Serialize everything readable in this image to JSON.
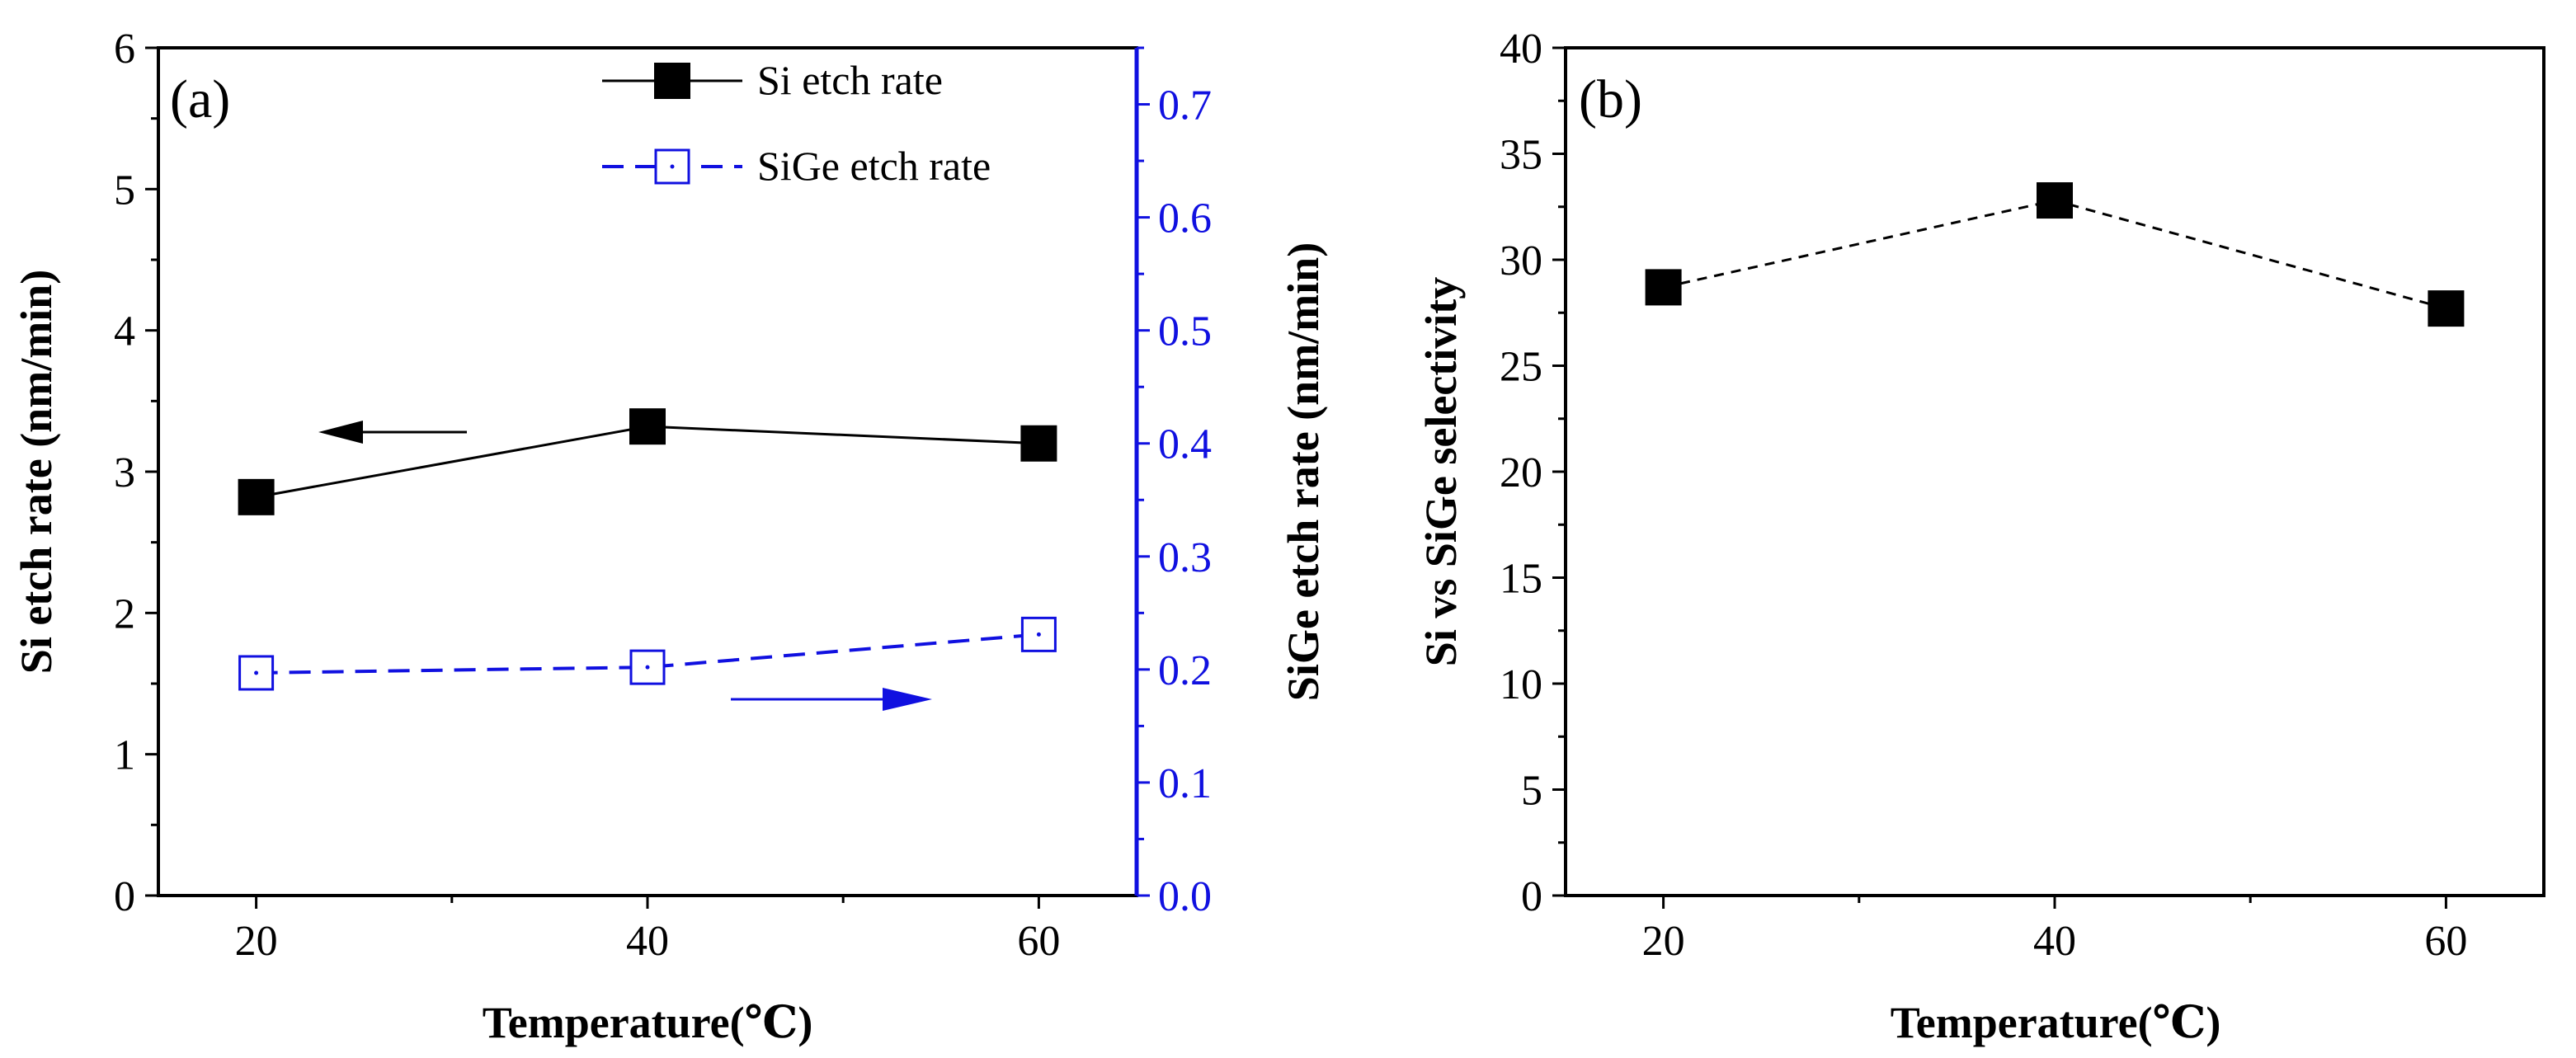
{
  "chart_data": [
    {
      "panel_label": "(a)",
      "type": "line",
      "xlabel": "Temperature(℃)",
      "ylabel": "Si etch rate (nm/min)",
      "ylabel_right": "SiGe etch rate (nm/min)",
      "x": [
        20,
        40,
        60
      ],
      "xlim": [
        15,
        65
      ],
      "ylim": [
        0,
        6
      ],
      "ylim_right": [
        0.0,
        0.75
      ],
      "xticks": [
        "20",
        "40",
        "60"
      ],
      "yticks": [
        "0",
        "1",
        "2",
        "3",
        "4",
        "5",
        "6"
      ],
      "yticks_right": [
        "0.0",
        "0.1",
        "0.2",
        "0.3",
        "0.4",
        "0.5",
        "0.6",
        "0.7"
      ],
      "grid": false,
      "legend_position": "top-right",
      "right_axis_color": "#1010e0",
      "series": [
        {
          "name": "Si etch rate",
          "axis": "left",
          "values": [
            2.82,
            3.32,
            3.2
          ],
          "color": "#000000",
          "line": "solid",
          "marker": "filled-square"
        },
        {
          "name": "SiGe etch rate",
          "axis": "right",
          "values": [
            0.197,
            0.202,
            0.231
          ],
          "color": "#1010e0",
          "line": "dashed",
          "marker": "open-square"
        }
      ],
      "annotations": [
        {
          "type": "arrow",
          "direction": "left",
          "points_to": "left axis"
        },
        {
          "type": "arrow",
          "direction": "right",
          "points_to": "right axis"
        }
      ]
    },
    {
      "panel_label": "(b)",
      "type": "line",
      "xlabel": "Temperature(℃)",
      "ylabel": "Si vs SiGe selectivity",
      "x": [
        20,
        40,
        60
      ],
      "xlim": [
        15,
        65
      ],
      "ylim": [
        0,
        40
      ],
      "xticks": [
        "20",
        "40",
        "60"
      ],
      "yticks": [
        "0",
        "5",
        "10",
        "15",
        "20",
        "25",
        "30",
        "35",
        "40"
      ],
      "grid": false,
      "series": [
        {
          "name": "Si vs SiGe selectivity",
          "values": [
            28.7,
            32.8,
            27.7
          ],
          "color": "#000000",
          "line": "dashed",
          "marker": "filled-square"
        }
      ]
    }
  ]
}
